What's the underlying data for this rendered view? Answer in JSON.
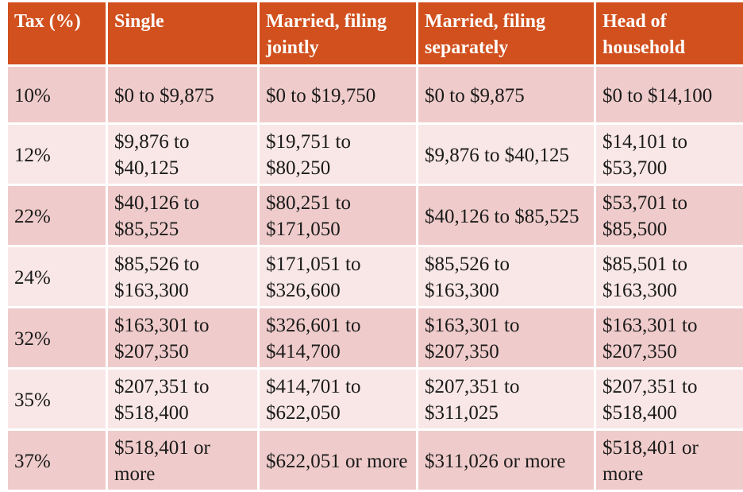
{
  "table": {
    "headers": [
      "Tax (%)",
      "Single",
      "Married, filing jointly",
      "Married, filing separately",
      "Head of household"
    ],
    "rows": [
      [
        "10%",
        "$0 to $9,875",
        "$0 to $19,750",
        "$0 to $9,875",
        "$0 to $14,100"
      ],
      [
        "12%",
        "$9,876 to $40,125",
        "$19,751 to $80,250",
        "$9,876 to $40,125",
        "$14,101 to $53,700"
      ],
      [
        "22%",
        "$40,126 to $85,525",
        "$80,251 to $171,050",
        "$40,126 to $85,525",
        "$53,701 to $85,500"
      ],
      [
        "24%",
        "$85,526 to $163,300",
        "$171,051 to $326,600",
        "$85,526 to $163,300",
        "$85,501 to $163,300"
      ],
      [
        "32%",
        "$163,301 to $207,350",
        "$326,601 to $414,700",
        "$163,301 to $207,350",
        "$163,301 to $207,350"
      ],
      [
        "35%",
        "$207,351 to $518,400",
        "$414,701 to $622,050",
        "$207,351 to $311,025",
        "$207,351 to $518,400"
      ],
      [
        "37%",
        "$518,401 or more",
        "$622,051 or more",
        "$311,026 or more",
        "$518,401 or more"
      ]
    ]
  },
  "colors": {
    "header_bg": "#d1501e",
    "row_dark": "#efcccb",
    "row_light": "#f8e7e6"
  }
}
